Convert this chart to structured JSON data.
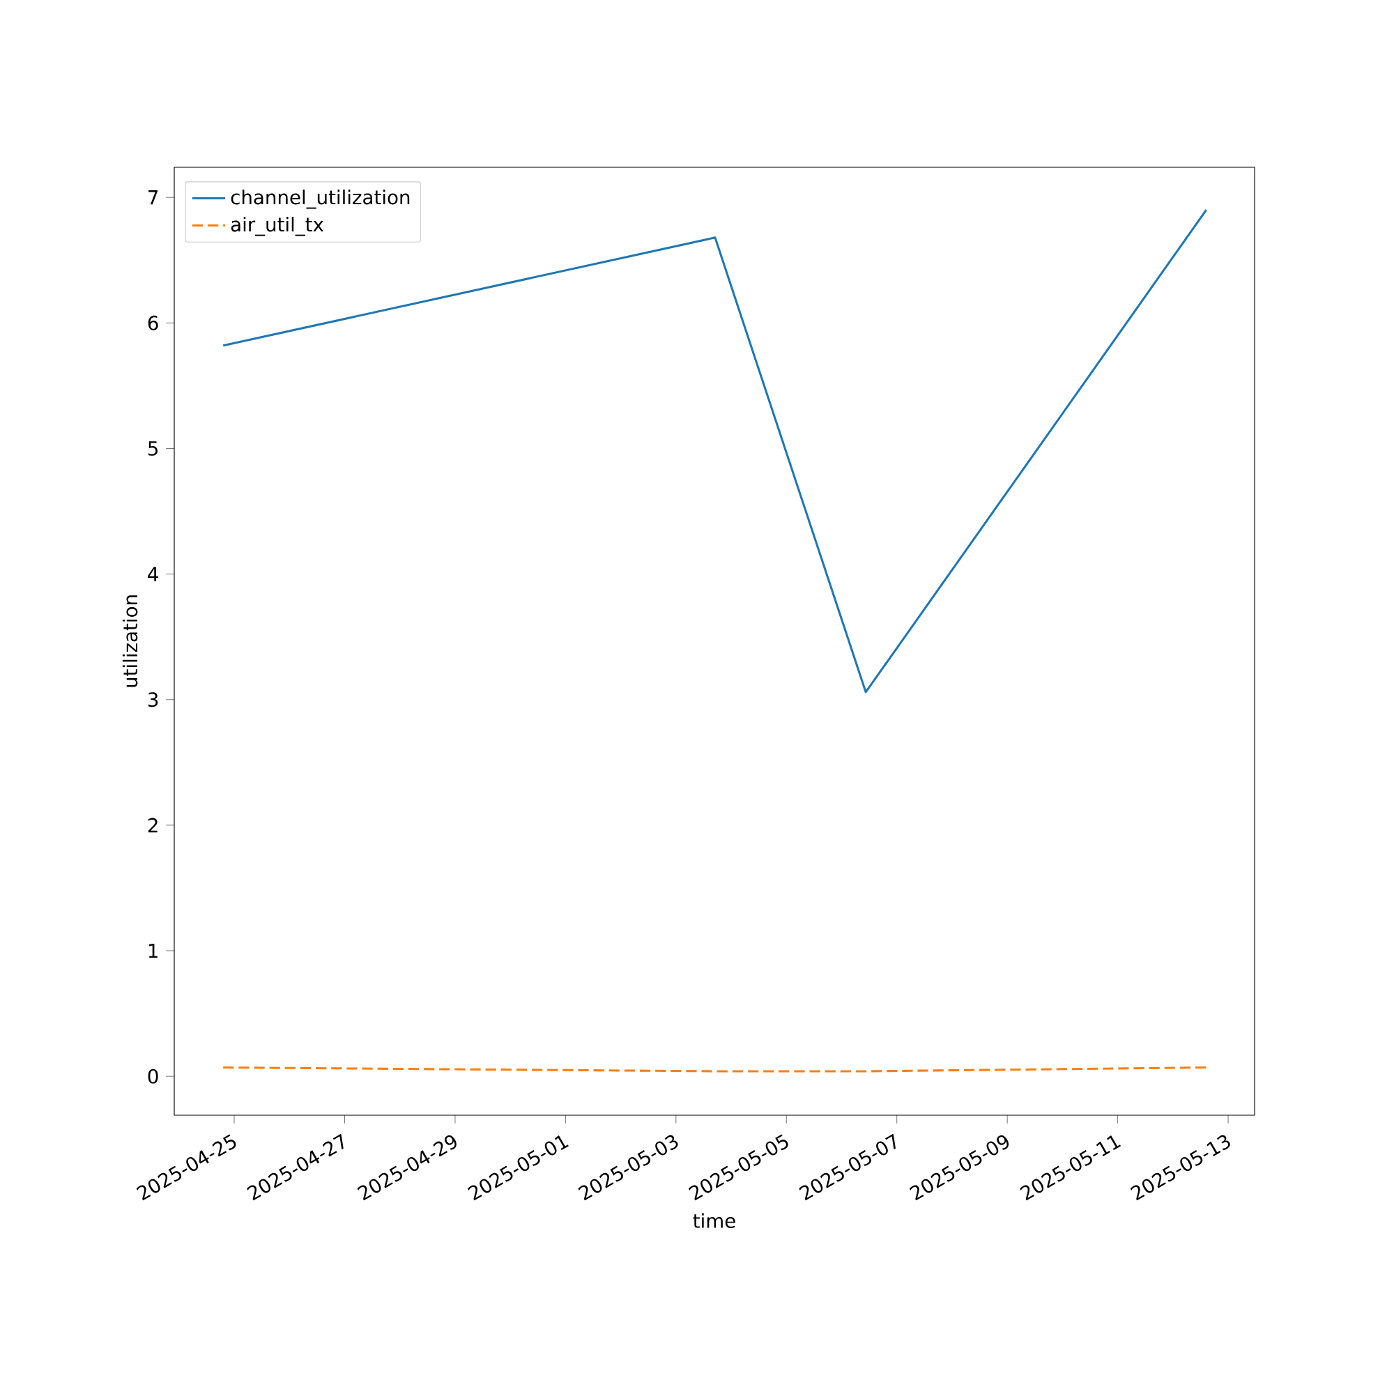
{
  "chart_data": {
    "type": "line",
    "xlabel": "time",
    "ylabel": "utilization",
    "x": [
      "2025-04-24T19:12",
      "2025-05-03T17:00",
      "2025-05-06T10:30",
      "2025-05-12T14:30"
    ],
    "series": [
      {
        "name": "channel_utilization",
        "color": "#1f77b4",
        "line_style": "solid",
        "values": [
          5.82,
          6.68,
          3.06,
          6.9
        ]
      },
      {
        "name": "air_util_tx",
        "color": "#ff7f0e",
        "line_style": "dashed",
        "values": [
          0.07,
          0.04,
          0.04,
          0.07
        ]
      }
    ],
    "xlim": [
      "2025-04-23T21:56",
      "2025-05-13T11:30"
    ],
    "ylim": [
      -0.31,
      7.24
    ],
    "xticks": [
      "2025-04-25",
      "2025-04-27",
      "2025-04-29",
      "2025-05-01",
      "2025-05-03",
      "2025-05-05",
      "2025-05-07",
      "2025-05-09",
      "2025-05-11",
      "2025-05-13"
    ],
    "yticks": [
      0,
      1,
      2,
      3,
      4,
      5,
      6,
      7
    ],
    "legend": "top left",
    "grid": false,
    "marker": "none"
  }
}
